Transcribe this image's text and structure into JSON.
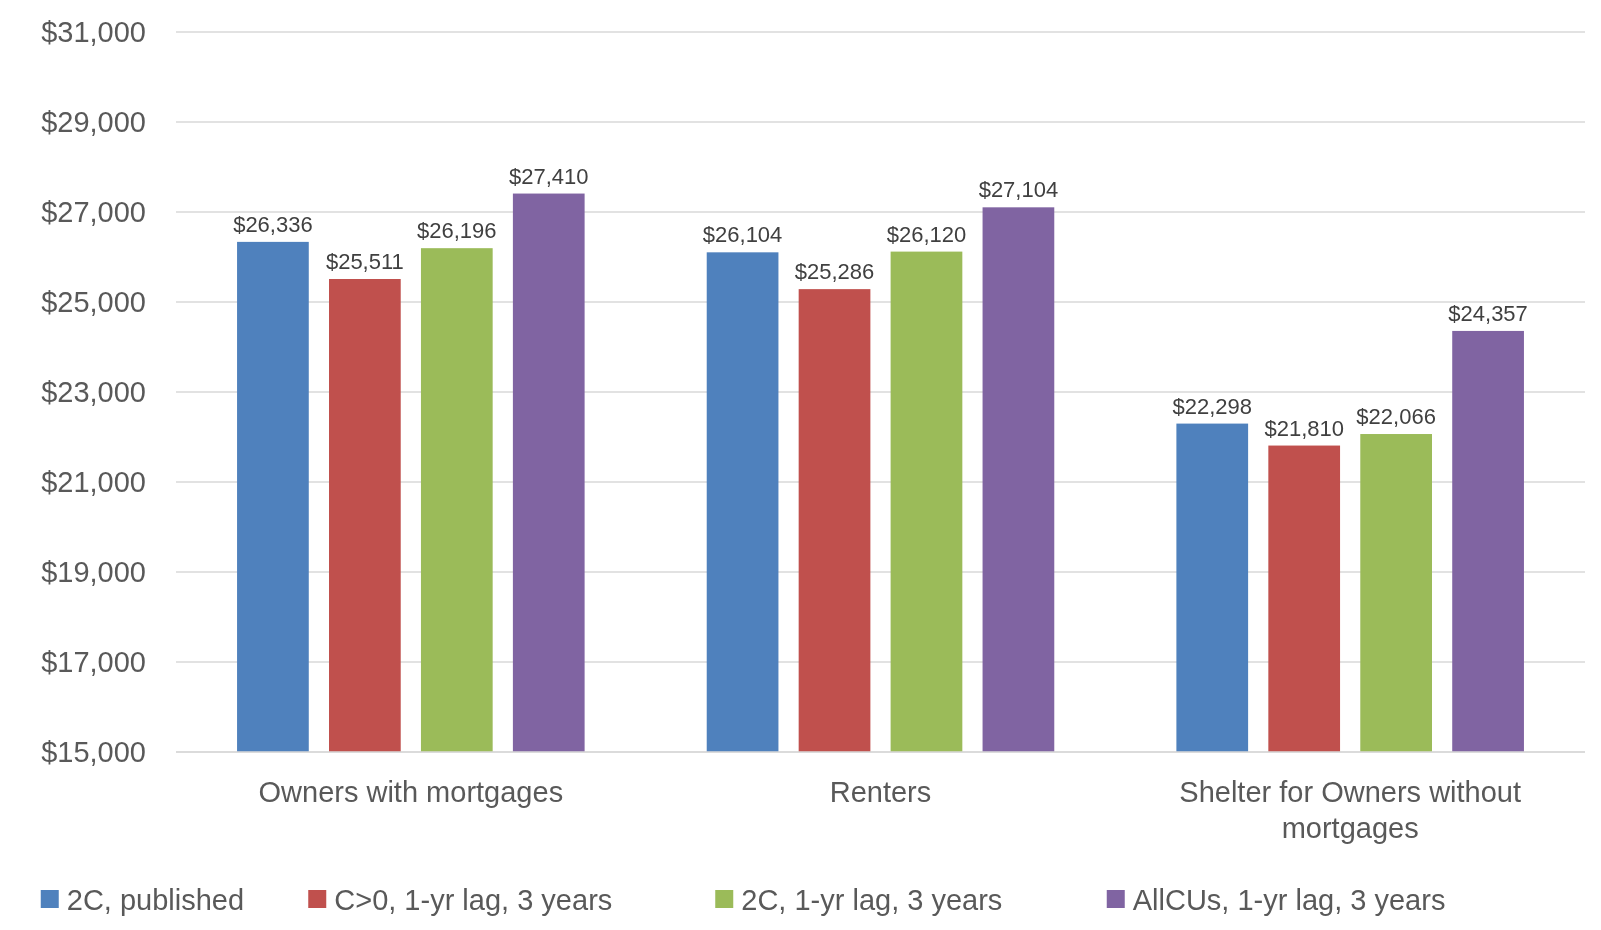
{
  "chart_data": {
    "type": "bar",
    "categories": [
      "Owners with mortgages",
      "Renters",
      "Shelter for Owners without mortgages"
    ],
    "series": [
      {
        "name": "2C, published",
        "color": "#4f81bd",
        "values": [
          26336,
          26104,
          22298
        ],
        "value_labels": [
          "$26,336",
          "$26,104",
          "$22,298"
        ]
      },
      {
        "name": "C>0, 1-yr lag, 3 years",
        "color": "#c0504d",
        "values": [
          25511,
          25286,
          21810
        ],
        "value_labels": [
          "$25,511",
          "$25,286",
          "$21,810"
        ]
      },
      {
        "name": "2C, 1-yr lag, 3 years",
        "color": "#9bbb59",
        "values": [
          26196,
          26120,
          22066
        ],
        "value_labels": [
          "$26,196",
          "$26,120",
          "$22,066"
        ]
      },
      {
        "name": "AllCUs, 1-yr lag, 3 years",
        "color": "#8064a2",
        "values": [
          27410,
          27104,
          24357
        ],
        "value_labels": [
          "$27,410",
          "$27,104",
          "$24,357"
        ]
      }
    ],
    "ylim": [
      15000,
      31000
    ],
    "yticks": [
      {
        "value": 15000,
        "label": "$15,000"
      },
      {
        "value": 17000,
        "label": "$17,000"
      },
      {
        "value": 19000,
        "label": "$19,000"
      },
      {
        "value": 21000,
        "label": "$21,000"
      },
      {
        "value": 23000,
        "label": "$23,000"
      },
      {
        "value": 25000,
        "label": "$25,000"
      },
      {
        "value": 27000,
        "label": "$27,000"
      },
      {
        "value": 29000,
        "label": "$29,000"
      },
      {
        "value": 31000,
        "label": "$31,000"
      }
    ],
    "grid": "y",
    "legend": "bottom"
  }
}
